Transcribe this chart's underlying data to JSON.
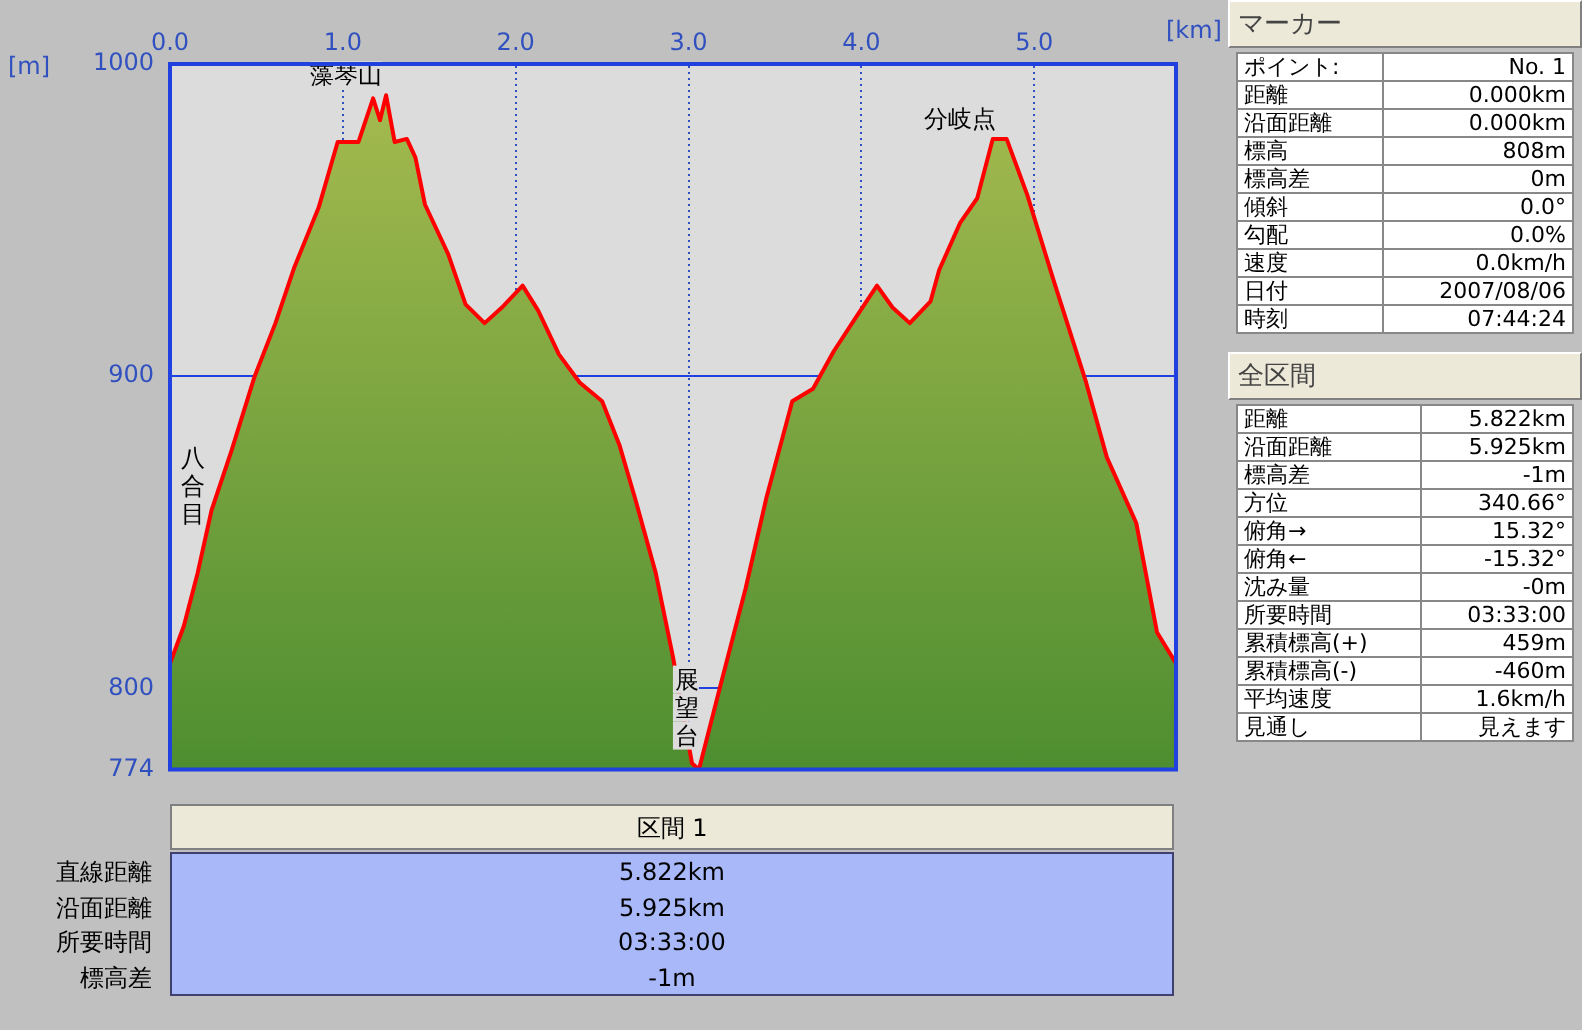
{
  "chart_data": [
    {
      "type": "area",
      "xlabel": "[km]",
      "ylabel": "[m]",
      "color": "#ff0000",
      "grid": true,
      "legend": false,
      "xlim": [
        0,
        5.82
      ],
      "xticks": [
        {
          "value": 0,
          "label": "0.0"
        },
        {
          "value": 1,
          "label": "1.0"
        },
        {
          "value": 2,
          "label": "2.0"
        },
        {
          "value": 3,
          "label": "3.0"
        },
        {
          "value": 4,
          "label": "4.0"
        },
        {
          "value": 5,
          "label": "5.0"
        }
      ],
      "ylim": [
        774,
        1000
      ],
      "yticks": [
        774,
        800,
        900,
        1000
      ],
      "x": [
        0,
        0.08,
        0.16,
        0.24,
        0.355,
        0.49,
        0.61,
        0.72,
        0.86,
        0.97,
        1.09,
        1.175,
        1.215,
        1.25,
        1.3,
        1.37,
        1.42,
        1.475,
        1.61,
        1.71,
        1.82,
        1.92,
        2.04,
        2.13,
        2.25,
        2.37,
        2.5,
        2.6,
        2.69,
        2.81,
        2.91,
        3.02,
        3.06,
        3.18,
        3.33,
        3.45,
        3.6,
        3.72,
        3.84,
        3.97,
        4.09,
        4.18,
        4.28,
        4.4,
        4.45,
        4.57,
        4.67,
        4.76,
        4.84,
        4.96,
        5.11,
        5.3,
        5.42,
        5.59,
        5.71,
        5.82
      ],
      "values": [
        808,
        820,
        837,
        857,
        876,
        900,
        917,
        935,
        954,
        975,
        975,
        989,
        982,
        990,
        975,
        976,
        970,
        955,
        939,
        923,
        917,
        922,
        929,
        921,
        907,
        898,
        892,
        878,
        861,
        837,
        810,
        776,
        774,
        800,
        832,
        861,
        892,
        896,
        908,
        919,
        929,
        922,
        917,
        924,
        934,
        949,
        957,
        976,
        976,
        958,
        931,
        898,
        874,
        853,
        818,
        808
      ],
      "annotations": [
        {
          "text": "藻琴山",
          "x": 1.25,
          "y": 990
        },
        {
          "text": "八合目",
          "x": 0.2,
          "y": 845
        },
        {
          "text": "展望台",
          "x": 3.06,
          "y": 774
        },
        {
          "text": "分岐点",
          "x": 4.8,
          "y": 976
        }
      ]
    },
    {
      "type": "other",
      "title": "マーカー",
      "annotations": [
        "ポイント:",
        "No. 1",
        "距離",
        "0.000km",
        "沿面距離",
        "0.000km",
        "標高",
        "808m",
        "標高差",
        "0m",
        "傾斜",
        "0.0°",
        "勾配",
        "0.0%",
        "速度",
        "0.0km/h",
        "日付",
        "2007/08/06",
        "時刻",
        "07:44:24"
      ]
    },
    {
      "type": "other",
      "title": "全区間",
      "annotations": [
        "距離",
        "5.822km",
        "沿面距離",
        "5.925km",
        "標高差",
        "-1m",
        "方位",
        "340.66°",
        "俯角→",
        "15.32°",
        "俯角←",
        "-15.32°",
        "沈み量",
        "-0m",
        "所要時間",
        "03:33:00",
        "累積標高(+)",
        "459m",
        "累積標高(-)",
        "-460m",
        "平均速度",
        "1.6km/h",
        "見通し",
        "見えます"
      ]
    },
    {
      "type": "other",
      "title": "区間 1",
      "annotations": [
        "直線距離",
        "5.822km",
        "沿面距離",
        "5.925km",
        "所要時間",
        "03:33:00",
        "標高差",
        "-1m"
      ]
    }
  ]
}
